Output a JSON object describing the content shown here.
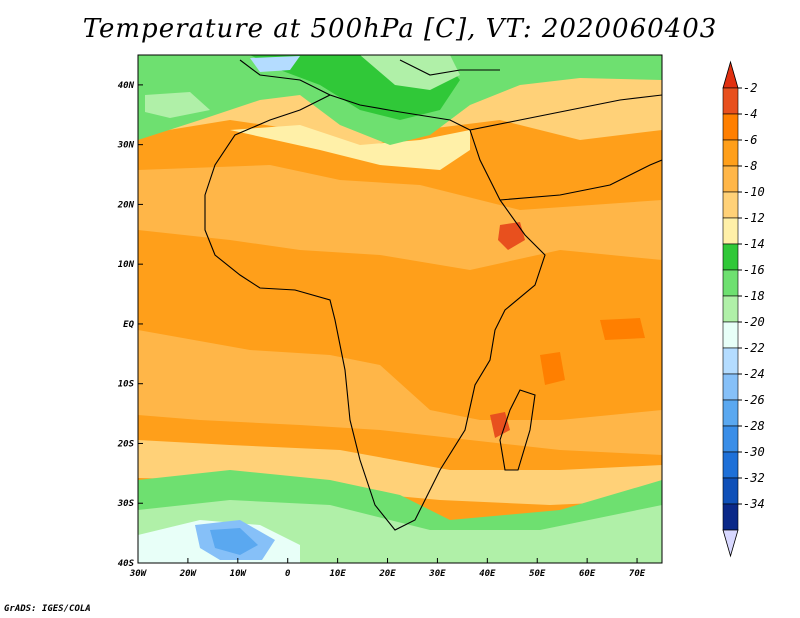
{
  "title": "Temperature at 500hPa [C], VT: 2020060403",
  "credit": "GrADS: IGES/COLA",
  "map": {
    "lon_range": [
      -30,
      75
    ],
    "lat_range": [
      -40,
      45
    ],
    "lon_labels": [
      {
        "lon": -30,
        "label": "30W"
      },
      {
        "lon": -20,
        "label": "20W"
      },
      {
        "lon": -10,
        "label": "10W"
      },
      {
        "lon": 0,
        "label": "0"
      },
      {
        "lon": 10,
        "label": "10E"
      },
      {
        "lon": 20,
        "label": "20E"
      },
      {
        "lon": 30,
        "label": "30E"
      },
      {
        "lon": 40,
        "label": "40E"
      },
      {
        "lon": 50,
        "label": "50E"
      },
      {
        "lon": 60,
        "label": "60E"
      },
      {
        "lon": 70,
        "label": "70E"
      }
    ],
    "lat_labels": [
      {
        "lat": 40,
        "label": "40N"
      },
      {
        "lat": 30,
        "label": "30N"
      },
      {
        "lat": 20,
        "label": "20N"
      },
      {
        "lat": 10,
        "label": "10N"
      },
      {
        "lat": 0,
        "label": "EQ"
      },
      {
        "lat": -10,
        "label": "10S"
      },
      {
        "lat": -20,
        "label": "20S"
      },
      {
        "lat": -30,
        "label": "30S"
      },
      {
        "lat": -40,
        "label": "40S"
      }
    ]
  },
  "colorbar": {
    "labels": [
      "-2",
      "-4",
      "-6",
      "-8",
      "-10",
      "-12",
      "-14",
      "-16",
      "-18",
      "-20",
      "-22",
      "-24",
      "-26",
      "-28",
      "-30",
      "-32",
      "-34"
    ],
    "colors": [
      "#e8501e",
      "#ff7f00",
      "#ff9f1a",
      "#ffb648",
      "#ffd178",
      "#fff0a8",
      "#30c838",
      "#6ee070",
      "#b0f0a8",
      "#e8fff8",
      "#b4dcff",
      "#86c0f8",
      "#5aa8f0",
      "#3a8ee8",
      "#1e70d8",
      "#0f50b8",
      "#0a2888"
    ],
    "top_color": "#e03010",
    "bottom_color": "#d8d8ff"
  }
}
